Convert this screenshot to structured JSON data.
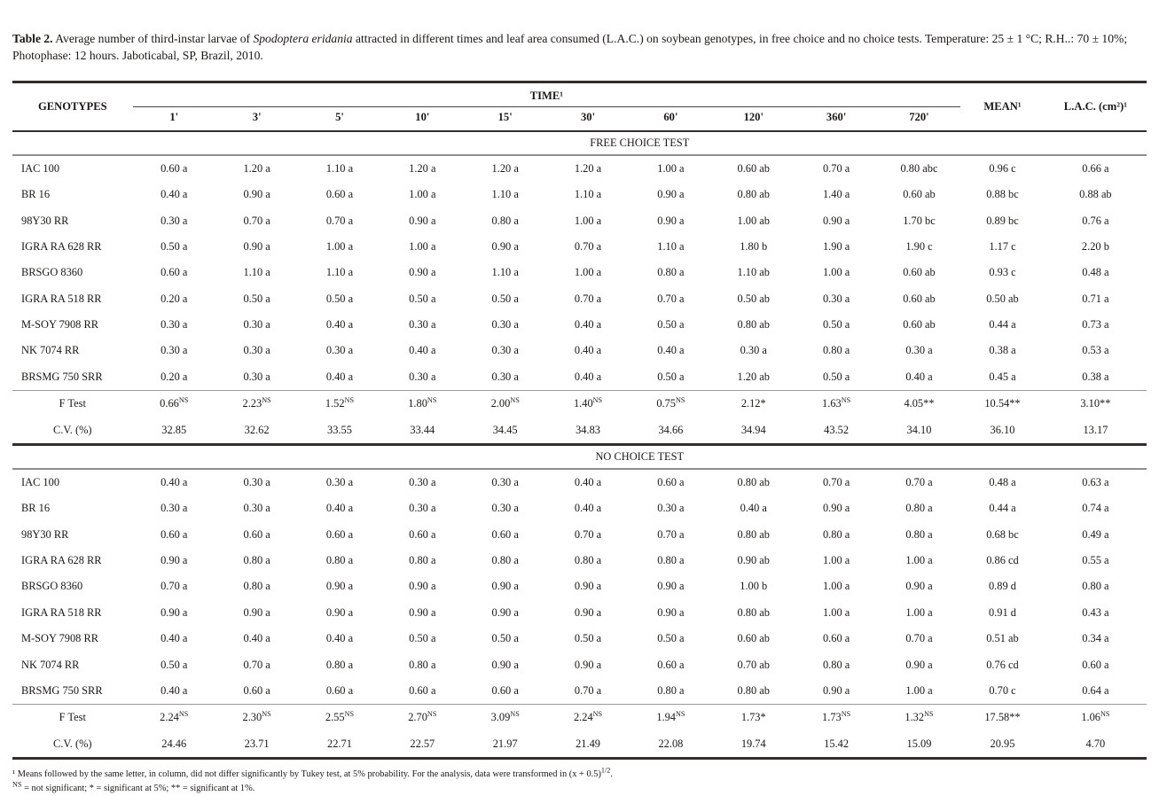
{
  "caption": {
    "label": "Table 2.",
    "before_italic": " Average number of third-instar larvae of ",
    "species": "Spodoptera eridania",
    "after_italic": " attracted in different times and leaf area consumed (L.A.C.) on soybean genotypes, in free choice and no choice tests. Temperature: 25 ± 1 °C; R.H..: 70 ± 10%; Photophase: 12 hours. Jaboticabal, SP, Brazil, 2010."
  },
  "table": {
    "col_genotypes": "GENOTYPES",
    "col_time": "TIME¹",
    "time_ticks": [
      "1'",
      "3'",
      "5'",
      "10'",
      "15'",
      "30'",
      "60'",
      "120'",
      "360'",
      "720'"
    ],
    "col_mean": "MEAN¹",
    "col_lac": "L.A.C. (cm²)¹",
    "sections": [
      {
        "title": "FREE CHOICE TEST",
        "rows": [
          {
            "genotype": "IAC 100",
            "values": [
              "0.60 a",
              "1.20 a",
              "1.10 a",
              "1.20 a",
              "1.20 a",
              "1.20 a",
              "1.00 a",
              "0.60 ab",
              "0.70 a",
              "0.80 abc",
              "0.96 c",
              "0.66 a"
            ]
          },
          {
            "genotype": "BR 16",
            "values": [
              "0.40 a",
              "0.90 a",
              "0.60 a",
              "1.00 a",
              "1.10 a",
              "1.10 a",
              "0.90 a",
              "0.80 ab",
              "1.40 a",
              "0.60 ab",
              "0.88 bc",
              "0.88 ab"
            ]
          },
          {
            "genotype": "98Y30 RR",
            "values": [
              "0.30 a",
              "0.70 a",
              "0.70 a",
              "0.90 a",
              "0.80 a",
              "1.00 a",
              "0.90 a",
              "1.00 ab",
              "0.90 a",
              "1.70 bc",
              "0.89 bc",
              "0.76 a"
            ]
          },
          {
            "genotype": "IGRA RA 628 RR",
            "values": [
              "0.50 a",
              "0.90 a",
              "1.00 a",
              "1.00 a",
              "0.90 a",
              "0.70 a",
              "1.10 a",
              "1.80 b",
              "1.90 a",
              "1.90 c",
              "1.17 c",
              "2.20 b"
            ]
          },
          {
            "genotype": "BRSGO 8360",
            "values": [
              "0.60 a",
              "1.10 a",
              "1.10 a",
              "0.90 a",
              "1.10 a",
              "1.00 a",
              "0.80 a",
              "1.10 ab",
              "1.00 a",
              "0.60 ab",
              "0.93 c",
              "0.48 a"
            ]
          },
          {
            "genotype": "IGRA RA 518 RR",
            "values": [
              "0.20 a",
              "0.50 a",
              "0.50 a",
              "0.50 a",
              "0.50 a",
              "0.70 a",
              "0.70 a",
              "0.50 ab",
              "0.30 a",
              "0.60 ab",
              "0.50 ab",
              "0.71 a"
            ]
          },
          {
            "genotype": "M-SOY 7908 RR",
            "values": [
              "0.30 a",
              "0.30 a",
              "0.40 a",
              "0.30 a",
              "0.30 a",
              "0.40 a",
              "0.50 a",
              "0.80 ab",
              "0.50 a",
              "0.60 ab",
              "0.44 a",
              "0.73 a"
            ]
          },
          {
            "genotype": "NK 7074 RR",
            "values": [
              "0.30 a",
              "0.30 a",
              "0.30 a",
              "0.40 a",
              "0.30 a",
              "0.40 a",
              "0.40 a",
              "0.30 a",
              "0.80 a",
              "0.30 a",
              "0.38 a",
              "0.53 a"
            ]
          },
          {
            "genotype": "BRSMG 750 SRR",
            "values": [
              "0.20 a",
              "0.30 a",
              "0.40 a",
              "0.30 a",
              "0.30 a",
              "0.40 a",
              "0.50 a",
              "1.20 ab",
              "0.50 a",
              "0.40 a",
              "0.45 a",
              "0.38 a"
            ]
          }
        ],
        "f_test": {
          "label": "F Test",
          "values": [
            "0.66^NS",
            "2.23^NS",
            "1.52^NS",
            "1.80^NS",
            "2.00^NS",
            "1.40^NS",
            "0.75^NS",
            "2.12*",
            "1.63^NS",
            "4.05**",
            "10.54**",
            "3.10**"
          ]
        },
        "cv": {
          "label": "C.V. (%)",
          "values": [
            "32.85",
            "32.62",
            "33.55",
            "33.44",
            "34.45",
            "34.83",
            "34.66",
            "34.94",
            "43.52",
            "34.10",
            "36.10",
            "13.17"
          ]
        }
      },
      {
        "title": "NO CHOICE TEST",
        "rows": [
          {
            "genotype": "IAC 100",
            "values": [
              "0.40 a",
              "0.30 a",
              "0.30 a",
              "0.30 a",
              "0.30 a",
              "0.40 a",
              "0.60 a",
              "0.80 ab",
              "0.70 a",
              "0.70 a",
              "0.48 a",
              "0.63 a"
            ]
          },
          {
            "genotype": "BR 16",
            "values": [
              "0.30 a",
              "0.30 a",
              "0.40 a",
              "0.30 a",
              "0.30 a",
              "0.40 a",
              "0.30 a",
              "0.40 a",
              "0.90 a",
              "0.80 a",
              "0.44 a",
              "0.74 a"
            ]
          },
          {
            "genotype": "98Y30 RR",
            "values": [
              "0.60 a",
              "0.60 a",
              "0.60 a",
              "0.60 a",
              "0.60 a",
              "0.70 a",
              "0.70 a",
              "0.80 ab",
              "0.80 a",
              "0.80 a",
              "0.68 bc",
              "0.49 a"
            ]
          },
          {
            "genotype": "IGRA RA 628 RR",
            "values": [
              "0.90 a",
              "0.80 a",
              "0.80 a",
              "0.80 a",
              "0.80 a",
              "0.80 a",
              "0.80 a",
              "0.90 ab",
              "1.00 a",
              "1.00 a",
              "0.86 cd",
              "0.55 a"
            ]
          },
          {
            "genotype": "BRSGO 8360",
            "values": [
              "0.70 a",
              "0.80 a",
              "0.90 a",
              "0.90 a",
              "0.90 a",
              "0.90 a",
              "0.90 a",
              "1.00 b",
              "1.00 a",
              "0.90 a",
              "0.89 d",
              "0.80 a"
            ]
          },
          {
            "genotype": "IGRA RA 518 RR",
            "values": [
              "0.90 a",
              "0.90 a",
              "0.90 a",
              "0.90 a",
              "0.90 a",
              "0.90 a",
              "0.90 a",
              "0.80 ab",
              "1.00 a",
              "1.00 a",
              "0.91 d",
              "0.43 a"
            ]
          },
          {
            "genotype": "M-SOY 7908 RR",
            "values": [
              "0.40 a",
              "0.40 a",
              "0.40 a",
              "0.50 a",
              "0.50 a",
              "0.50 a",
              "0.50 a",
              "0.60 ab",
              "0.60 a",
              "0.70 a",
              "0.51 ab",
              "0.34 a"
            ]
          },
          {
            "genotype": "NK 7074 RR",
            "values": [
              "0.50 a",
              "0.70 a",
              "0.80 a",
              "0.80 a",
              "0.90 a",
              "0.90 a",
              "0.60 a",
              "0.70 ab",
              "0.80 a",
              "0.90 a",
              "0.76 cd",
              "0.60 a"
            ]
          },
          {
            "genotype": "BRSMG 750 SRR",
            "values": [
              "0.40 a",
              "0.60 a",
              "0.60 a",
              "0.60 a",
              "0.60 a",
              "0.70 a",
              "0.80 a",
              "0.80 ab",
              "0.90 a",
              "1.00 a",
              "0.70 c",
              "0.64 a"
            ]
          }
        ],
        "f_test": {
          "label": "F Test",
          "values": [
            "2.24^NS",
            "2.30^NS",
            "2.55^NS",
            "2.70^NS",
            "3.09^NS",
            "2.24^NS",
            "1.94^NS",
            "1.73*",
            "1.73^NS",
            "1.32^NS",
            "17.58**",
            "1.06^NS"
          ]
        },
        "cv": {
          "label": "C.V. (%)",
          "values": [
            "24.46",
            "23.71",
            "22.71",
            "22.57",
            "21.97",
            "21.49",
            "22.08",
            "19.74",
            "15.42",
            "15.09",
            "20.95",
            "4.70"
          ]
        }
      }
    ]
  },
  "footnotes": {
    "line1_main": "¹ Means followed by the same letter, in column, did not differ significantly by Tukey test, at 5% probability. For the analysis, data were transformed in (x + 0.5)",
    "line1_sup": "1/2",
    "line1_tail": ".",
    "line2_sup": "NS",
    "line2_main": " = not significant; * = significant at 5%; ** = significant at 1%."
  }
}
